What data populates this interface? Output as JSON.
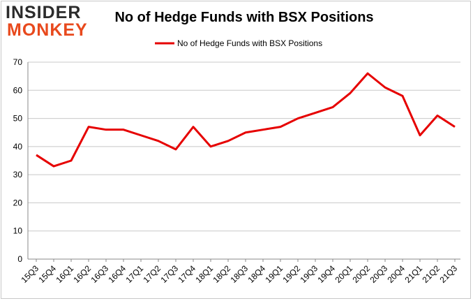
{
  "brand": {
    "top": "INSIDER",
    "bottom": "MONKEY",
    "accent": "#e8491d",
    "dark": "#2b2b2b"
  },
  "chart_data": {
    "type": "line",
    "title": "No of Hedge Funds with BSX Positions",
    "xlabel": "",
    "ylabel": "",
    "ylim": [
      0,
      70
    ],
    "yticks": [
      0,
      10,
      20,
      30,
      40,
      50,
      60,
      70
    ],
    "grid": true,
    "legend_position": "top",
    "categories": [
      "15Q3",
      "15Q4",
      "16Q1",
      "16Q2",
      "16Q3",
      "16Q4",
      "17Q1",
      "17Q2",
      "17Q3",
      "17Q4",
      "18Q1",
      "18Q2",
      "18Q3",
      "18Q4",
      "19Q1",
      "19Q2",
      "19Q3",
      "19Q4",
      "20Q1",
      "20Q2",
      "20Q3",
      "20Q4",
      "21Q1",
      "21Q2",
      "21Q3"
    ],
    "series": [
      {
        "name": "No of Hedge Funds with BSX Positions",
        "color": "#e60000",
        "values": [
          37,
          33,
          35,
          47,
          46,
          46,
          44,
          42,
          39,
          47,
          40,
          42,
          45,
          46,
          47,
          50,
          52,
          54,
          59,
          66,
          61,
          58,
          44,
          51,
          47
        ]
      }
    ]
  }
}
